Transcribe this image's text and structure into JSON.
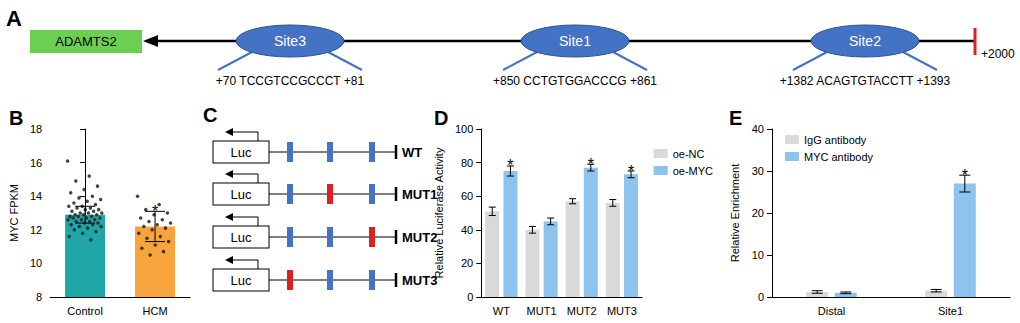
{
  "diagram_a": {
    "panel": "A",
    "gene": "ADAMTS2",
    "end_label": "+2000",
    "sites": [
      {
        "name": "Site3",
        "start": "+70",
        "sequence": "TCCGTCCGCCCT",
        "end": "+81"
      },
      {
        "name": "Site1",
        "start": "+850",
        "sequence": "CCTGTGGACCCG",
        "end": "+861"
      },
      {
        "name": "Site2",
        "start": "+1382",
        "sequence": "ACAGTGTACCTT",
        "end": "+1393"
      }
    ]
  },
  "diagram_c": {
    "panel": "C",
    "box_label": "Luc",
    "rows": [
      {
        "label": "WT",
        "mutated": null
      },
      {
        "label": "MUT1",
        "mutated": "Site1"
      },
      {
        "label": "MUT2",
        "mutated": "Site2"
      },
      {
        "label": "MUT3",
        "mutated": "Site3"
      }
    ]
  },
  "chart_data": [
    {
      "type": "bar",
      "title": "B",
      "categories": [
        "Control",
        "HCM"
      ],
      "values": [
        12.9,
        12.2
      ],
      "errors": [
        0.5,
        0.9
      ],
      "colors": [
        "#1ea7a6",
        "#f8a43e"
      ],
      "points": [
        [
          16.1,
          15.2,
          14.9,
          14.6,
          14.4,
          14.2,
          14.0,
          13.9,
          13.8,
          13.7,
          13.6,
          13.5,
          13.4,
          13.4,
          13.3,
          13.3,
          13.2,
          13.2,
          13.1,
          13.1,
          13.0,
          13.0,
          13.0,
          12.9,
          12.9,
          12.9,
          12.8,
          12.8,
          12.8,
          12.7,
          12.7,
          12.7,
          12.6,
          12.6,
          12.6,
          12.5,
          12.5,
          12.4,
          12.4,
          12.3,
          12.3,
          12.2,
          12.2,
          12.1,
          12.0,
          11.9,
          11.8,
          11.6,
          11.4
        ],
        [
          14.0,
          13.5,
          13.2,
          13.0,
          12.9,
          12.7,
          12.6,
          12.5,
          12.4,
          12.3,
          12.2,
          12.1,
          12.0,
          11.8,
          11.6,
          11.5,
          11.3,
          11.1,
          10.9,
          10.7,
          10.5
        ]
      ],
      "ylabel": "MYC FPKM",
      "ylim": [
        8,
        18
      ],
      "yticks": [
        8,
        10,
        12,
        14,
        16,
        18
      ],
      "grid": false,
      "annotations": [
        {
          "category": "HCM",
          "text": "*"
        }
      ]
    },
    {
      "type": "bar",
      "title": "D",
      "categories": [
        "WT",
        "MUT1",
        "MUT2",
        "MUT3"
      ],
      "series": [
        {
          "name": "oe-NC",
          "color": "#d9d9d9",
          "values": [
            51,
            40,
            57,
            56
          ],
          "errors": [
            2.5,
            2,
            1.5,
            2
          ]
        },
        {
          "name": "oe-MYC",
          "color": "#8ec3ef",
          "values": [
            75,
            45,
            77,
            73
          ],
          "errors": [
            3,
            2,
            2,
            2
          ]
        }
      ],
      "ylabel": "Relative Luciferase Activity",
      "ylim": [
        0,
        100
      ],
      "yticks": [
        0,
        20,
        40,
        60,
        80,
        100
      ],
      "legend": "right",
      "grid": false,
      "annotations": [
        {
          "category": "WT",
          "series": "oe-MYC",
          "text": "*"
        },
        {
          "category": "MUT2",
          "series": "oe-MYC",
          "text": "*"
        },
        {
          "category": "MUT3",
          "series": "oe-MYC",
          "text": "*"
        }
      ]
    },
    {
      "type": "bar",
      "title": "E",
      "categories": [
        "Distal",
        "Site1"
      ],
      "series": [
        {
          "name": "IgG antibody",
          "color": "#d9d9d9",
          "values": [
            1.2,
            1.5
          ],
          "errors": [
            0.3,
            0.3
          ]
        },
        {
          "name": "MYC antibody",
          "color": "#8ec3ef",
          "values": [
            1.0,
            27
          ],
          "errors": [
            0.2,
            2
          ]
        }
      ],
      "ylabel": "Relative Enrichment",
      "ylim": [
        0,
        40
      ],
      "yticks": [
        0,
        10,
        20,
        30,
        40
      ],
      "legend": "upper left",
      "grid": false,
      "annotations": [
        {
          "category": "Site1",
          "series": "MYC antibody",
          "text": "*"
        }
      ]
    }
  ]
}
